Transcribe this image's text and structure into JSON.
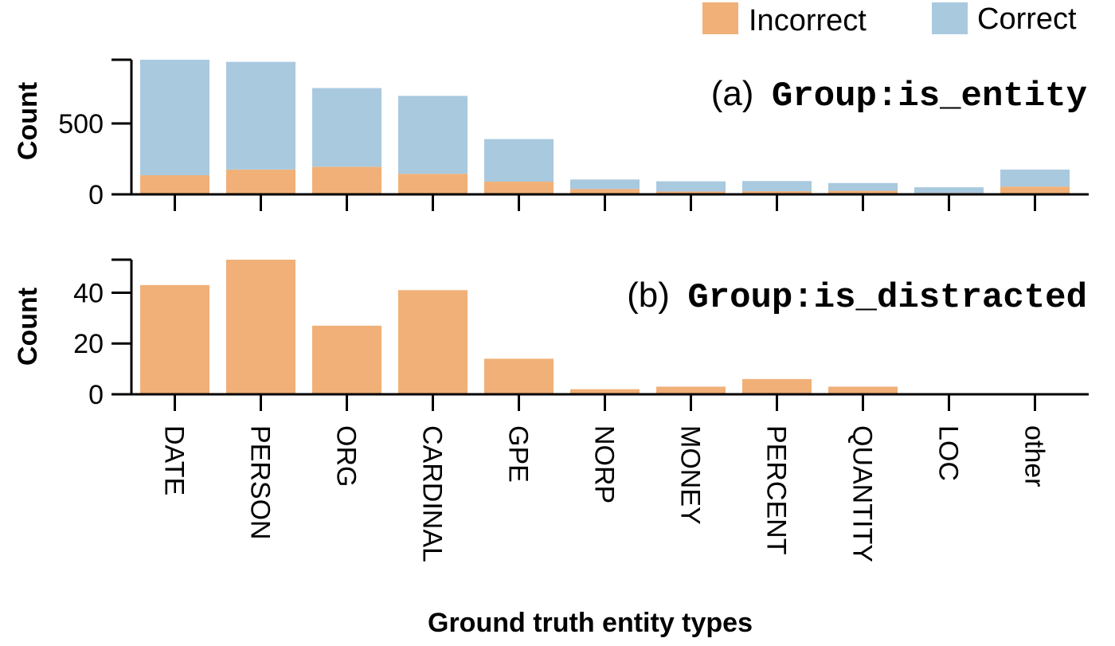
{
  "legend": [
    {
      "label": "Incorrect",
      "color": "#f0b077"
    },
    {
      "label": "Correct",
      "color": "#a9c9df"
    }
  ],
  "xlabel": "Ground truth entity types",
  "chart_data": [
    {
      "type": "bar",
      "stacked": true,
      "panel_prefix": "(a)",
      "panel_name": "Group:is_entity",
      "ylabel": "Count",
      "ylim": [
        0,
        950
      ],
      "yticks": [
        0,
        500
      ],
      "categories": [
        "DATE",
        "PERSON",
        "ORG",
        "CARDINAL",
        "GPE",
        "NORP",
        "MONEY",
        "PERCENT",
        "QUANTITY",
        "LOC",
        "other"
      ],
      "series": [
        {
          "name": "Incorrect",
          "color": "#f0b077",
          "values": [
            135,
            175,
            195,
            145,
            90,
            38,
            20,
            22,
            25,
            10,
            55
          ]
        },
        {
          "name": "Correct",
          "color": "#a9c9df",
          "values": [
            815,
            760,
            555,
            550,
            300,
            67,
            72,
            72,
            55,
            40,
            120
          ]
        }
      ]
    },
    {
      "type": "bar",
      "panel_prefix": "(b)",
      "panel_name": "Group:is_distracted",
      "ylabel": "Count",
      "ylim": [
        0,
        53
      ],
      "yticks": [
        0,
        20,
        40
      ],
      "categories": [
        "DATE",
        "PERSON",
        "ORG",
        "CARDINAL",
        "GPE",
        "NORP",
        "MONEY",
        "PERCENT",
        "QUANTITY",
        "LOC",
        "other"
      ],
      "series": [
        {
          "name": "Incorrect",
          "color": "#f0b077",
          "values": [
            43,
            53,
            27,
            41,
            14,
            2,
            3,
            6,
            3,
            0,
            0
          ]
        }
      ]
    }
  ]
}
